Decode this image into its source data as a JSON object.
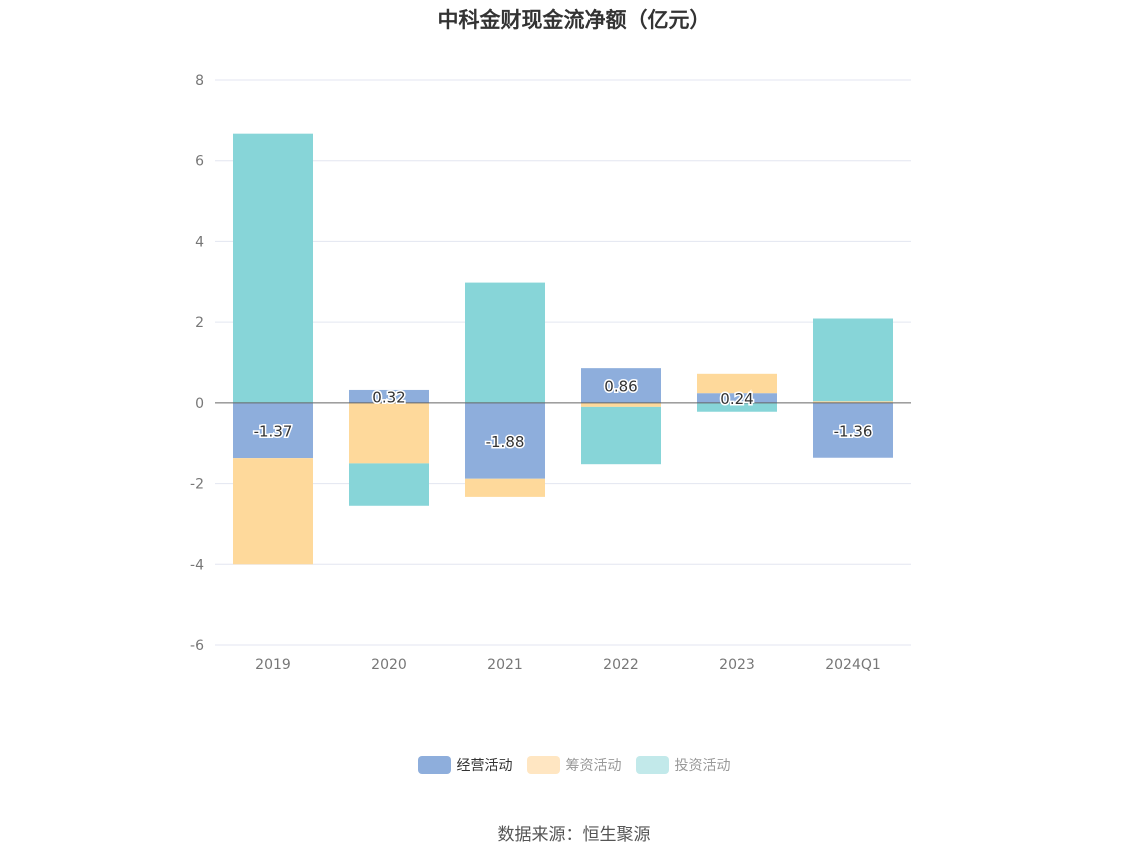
{
  "chart_data": {
    "type": "bar",
    "stacked": true,
    "title": "中科金财现金流净额（亿元）",
    "categories": [
      "2019",
      "2020",
      "2021",
      "2022",
      "2023",
      "2024Q1"
    ],
    "series": [
      {
        "name": "经营活动",
        "values": [
          -1.37,
          0.32,
          -1.88,
          0.86,
          0.24,
          -1.36
        ],
        "color": "#8eaedc",
        "labeled": true
      },
      {
        "name": "筹资活动",
        "values": [
          -2.63,
          -1.5,
          -0.45,
          -0.1,
          0.48,
          0.04
        ],
        "color": "#fed99b",
        "labeled": false
      },
      {
        "name": "投资活动",
        "values": [
          6.67,
          -1.05,
          2.98,
          -1.42,
          -0.22,
          2.05
        ],
        "color": "#87d5d8",
        "labeled": false
      }
    ],
    "value_labels": [
      "-1.37",
      "0.32",
      "-1.88",
      "0.86",
      "0.24",
      "-1.36"
    ],
    "ylim": [
      -6,
      8
    ],
    "yticks": [
      -6,
      -4,
      -2,
      0,
      2,
      4,
      6,
      8
    ],
    "ytick_labels": [
      "-6",
      "-4",
      "-2",
      "0",
      "2",
      "4",
      "6",
      "8"
    ],
    "xlabel": "",
    "ylabel": "",
    "grid": true,
    "legend_position": "bottom-center"
  },
  "legend": {
    "items": [
      {
        "label": "经营活动",
        "color": "#8eaedc",
        "text_active": true
      },
      {
        "label": "筹资活动",
        "color": "#ffe6c2",
        "text_active": false
      },
      {
        "label": "投资活动",
        "color": "#c2e9ea",
        "text_active": false
      }
    ]
  },
  "source": "数据来源：恒生聚源"
}
